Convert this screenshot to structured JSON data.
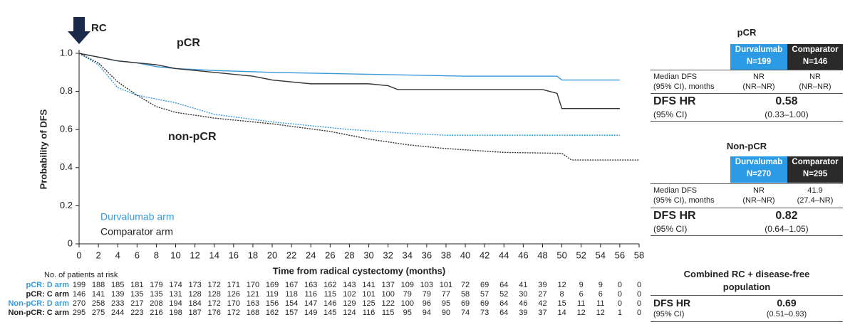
{
  "chart_data": {
    "type": "line",
    "ylabel": "Probability of DFS",
    "xlabel": "Time from radical cystectomy (months)",
    "annotations": {
      "rc": "RC",
      "pcr": "pCR",
      "nonpcr": "non-pCR"
    },
    "legend": [
      {
        "name": "Durvalumab arm",
        "color": "#3a9ad9"
      },
      {
        "name": "Comparator arm",
        "color": "#222222"
      }
    ],
    "xlim": [
      0,
      58
    ],
    "ylim": [
      0,
      1.0
    ],
    "xticks": [
      0,
      2,
      4,
      6,
      8,
      10,
      12,
      14,
      16,
      18,
      20,
      22,
      24,
      26,
      28,
      30,
      32,
      34,
      36,
      38,
      40,
      42,
      44,
      46,
      48,
      50,
      52,
      54,
      56,
      58
    ],
    "yticks": [
      0,
      0.2,
      0.4,
      0.6,
      0.8,
      {
        "value": 1,
        "label": "1.0"
      }
    ],
    "series": [
      {
        "color": "#3a9ad9",
        "dash": false,
        "x": [
          0,
          1,
          2,
          4,
          6,
          8,
          10,
          14,
          20,
          30,
          40,
          49.5,
          50,
          56
        ],
        "values": [
          1.0,
          0.99,
          0.98,
          0.96,
          0.95,
          0.93,
          0.92,
          0.91,
          0.9,
          0.89,
          0.88,
          0.88,
          0.86,
          0.86
        ]
      },
      {
        "color": "#333333",
        "dash": false,
        "x": [
          0,
          2,
          4,
          8,
          10,
          14,
          18,
          20,
          24,
          30,
          32,
          33,
          48,
          49.5,
          50,
          56
        ],
        "values": [
          1.0,
          0.98,
          0.96,
          0.94,
          0.92,
          0.9,
          0.88,
          0.86,
          0.84,
          0.84,
          0.83,
          0.81,
          0.81,
          0.79,
          0.71,
          0.71
        ]
      },
      {
        "color": "#3a9ad9",
        "dash": true,
        "x": [
          0,
          2,
          4,
          6,
          10,
          14,
          20,
          28,
          34,
          38,
          56
        ],
        "values": [
          1.0,
          0.94,
          0.82,
          0.78,
          0.74,
          0.68,
          0.64,
          0.6,
          0.58,
          0.57,
          0.57
        ]
      },
      {
        "color": "#333333",
        "dash": true,
        "x": [
          0,
          2,
          4,
          6,
          8,
          10,
          14,
          20,
          26,
          30,
          34,
          38,
          44,
          50,
          51,
          58
        ],
        "values": [
          1.0,
          0.95,
          0.85,
          0.78,
          0.72,
          0.69,
          0.66,
          0.63,
          0.59,
          0.55,
          0.52,
          0.5,
          0.48,
          0.475,
          0.44,
          0.44
        ]
      }
    ],
    "at_risk": {
      "title": "No. of patients at risk",
      "rows": [
        {
          "label": "pCR: D arm",
          "color": "#3a9ad9",
          "values": [
            199,
            188,
            185,
            181,
            179,
            174,
            173,
            172,
            171,
            170,
            169,
            167,
            163,
            162,
            143,
            141,
            137,
            109,
            103,
            101,
            72,
            69,
            64,
            41,
            39,
            12,
            9,
            9,
            0,
            0
          ]
        },
        {
          "label": "pCR: C arm",
          "color": "#222222",
          "values": [
            146,
            141,
            139,
            135,
            135,
            131,
            128,
            128,
            126,
            121,
            119,
            118,
            116,
            115,
            102,
            101,
            100,
            79,
            79,
            77,
            58,
            57,
            52,
            30,
            27,
            8,
            6,
            6,
            0,
            0
          ]
        },
        {
          "label": "Non-pCR: D arm",
          "color": "#3a9ad9",
          "values": [
            270,
            258,
            233,
            217,
            208,
            194,
            184,
            172,
            170,
            163,
            156,
            154,
            147,
            146,
            129,
            125,
            122,
            100,
            96,
            95,
            69,
            69,
            64,
            46,
            42,
            15,
            11,
            11,
            0,
            0
          ]
        },
        {
          "label": "Non-pCR: C arm",
          "color": "#222222",
          "values": [
            295,
            275,
            244,
            223,
            216,
            198,
            187,
            176,
            172,
            168,
            162,
            157,
            149,
            145,
            124,
            116,
            115,
            95,
            94,
            90,
            74,
            73,
            64,
            39,
            37,
            14,
            12,
            12,
            1,
            0
          ]
        }
      ]
    }
  },
  "panels": [
    {
      "title": "pCR",
      "col1": [
        "Durvalumab",
        "N=199"
      ],
      "col2": [
        "Comparator",
        "N=146"
      ],
      "median_label": [
        "Median DFS",
        "(95% CI), months"
      ],
      "median1": [
        "NR",
        "(NR–NR)"
      ],
      "median2": [
        "NR",
        "(NR–NR)"
      ],
      "hr_label": [
        "DFS HR",
        "(95% CI)"
      ],
      "hr": "0.58",
      "ci": "(0.33–1.00)"
    },
    {
      "title": "Non-pCR",
      "col1": [
        "Durvalumab",
        "N=270"
      ],
      "col2": [
        "Comparator",
        "N=295"
      ],
      "median_label": [
        "Median DFS",
        "(95% CI), months"
      ],
      "median1": [
        "NR",
        "(NR–NR)"
      ],
      "median2": [
        "41.9",
        "(27.4–NR)"
      ],
      "hr_label": [
        "DFS HR",
        "(95% CI)"
      ],
      "hr": "0.82",
      "ci": "(0.64–1.05)"
    }
  ],
  "combined": {
    "title": [
      "Combined RC + disease-free",
      "population"
    ],
    "hr_label": [
      "DFS HR",
      "(95% CI)"
    ],
    "hr": "0.69",
    "ci": "(0.51–0.93)"
  }
}
